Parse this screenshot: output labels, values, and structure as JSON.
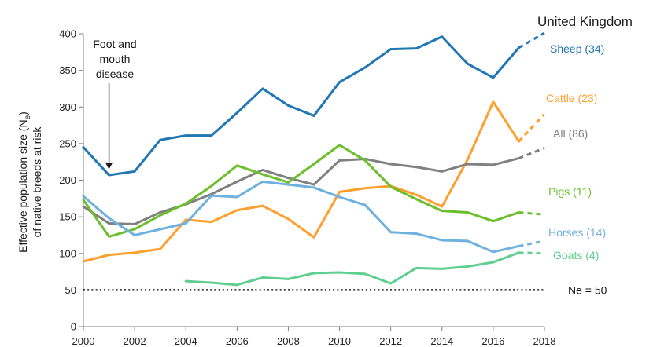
{
  "chart_data": {
    "type": "line",
    "title": "United Kingdom",
    "xlabel": "",
    "ylabel": "Effective population size (Ne) of native breeds at risk",
    "ylabel_parts": {
      "line1_pre": "Effective population size (N",
      "line1_sub": "e",
      "line1_post": ")",
      "line2": "of native breeds at risk"
    },
    "xlim": [
      2000,
      2018
    ],
    "ylim": [
      0,
      400
    ],
    "x_ticks": [
      2000,
      2002,
      2004,
      2006,
      2008,
      2010,
      2012,
      2014,
      2016,
      2018
    ],
    "y_ticks": [
      0,
      50,
      100,
      150,
      200,
      250,
      300,
      350,
      400
    ],
    "grid": false,
    "series": [
      {
        "name": "Sheep (34)",
        "label": "Sheep (34)",
        "color": "#1f77b4",
        "x": [
          2000,
          2001,
          2002,
          2003,
          2004,
          2005,
          2006,
          2007,
          2008,
          2009,
          2010,
          2011,
          2012,
          2013,
          2014,
          2015,
          2016,
          2017
        ],
        "values": [
          245,
          207,
          212,
          255,
          261,
          261,
          292,
          325,
          302,
          288,
          334,
          354,
          379,
          380,
          396,
          359,
          340,
          381
        ],
        "projection": {
          "x": [
            2017,
            2018
          ],
          "values": [
            381,
            401
          ]
        }
      },
      {
        "name": "Cattle (23)",
        "label": "Cattle (23)",
        "color": "#ff9f2e",
        "x": [
          2000,
          2001,
          2002,
          2003,
          2004,
          2005,
          2006,
          2007,
          2008,
          2009,
          2010,
          2011,
          2012,
          2013,
          2014,
          2015,
          2016,
          2017
        ],
        "values": [
          89,
          98,
          101,
          106,
          146,
          143,
          159,
          165,
          147,
          122,
          184,
          189,
          192,
          180,
          164,
          228,
          307,
          253
        ],
        "projection": {
          "x": [
            2017,
            2018
          ],
          "values": [
            253,
            290
          ]
        }
      },
      {
        "name": "All (86)",
        "label": "All (86)",
        "color": "#808080",
        "x": [
          2000,
          2001,
          2002,
          2003,
          2004,
          2005,
          2006,
          2007,
          2008,
          2009,
          2010,
          2011,
          2012,
          2013,
          2014,
          2015,
          2016,
          2017
        ],
        "values": [
          164,
          141,
          140,
          156,
          167,
          181,
          198,
          214,
          203,
          194,
          227,
          229,
          222,
          218,
          212,
          222,
          221,
          230
        ],
        "projection": {
          "x": [
            2017,
            2018
          ],
          "values": [
            230,
            244
          ]
        }
      },
      {
        "name": "Pigs (11)",
        "label": "Pigs (11)",
        "color": "#6abf2a",
        "x": [
          2000,
          2001,
          2002,
          2003,
          2004,
          2005,
          2006,
          2007,
          2008,
          2009,
          2010,
          2011,
          2012,
          2013,
          2014,
          2015,
          2016,
          2017
        ],
        "values": [
          173,
          123,
          133,
          152,
          168,
          192,
          220,
          208,
          197,
          222,
          248,
          227,
          191,
          174,
          158,
          156,
          144,
          156
        ],
        "projection": {
          "x": [
            2017,
            2018
          ],
          "values": [
            156,
            153
          ]
        }
      },
      {
        "name": "Horses (14)",
        "label": "Horses (14)",
        "color": "#6fb1de",
        "x": [
          2000,
          2001,
          2002,
          2003,
          2004,
          2005,
          2006,
          2007,
          2008,
          2009,
          2010,
          2011,
          2012,
          2013,
          2014,
          2015,
          2016,
          2017
        ],
        "values": [
          178,
          148,
          125,
          133,
          141,
          179,
          177,
          198,
          194,
          190,
          177,
          166,
          129,
          127,
          118,
          117,
          102,
          110
        ],
        "projection": {
          "x": [
            2017,
            2018
          ],
          "values": [
            110,
            117
          ]
        }
      },
      {
        "name": "Goats (4)",
        "label": "Goats (4)",
        "color": "#5fcf8f",
        "x": [
          2004,
          2005,
          2006,
          2007,
          2008,
          2009,
          2010,
          2011,
          2012,
          2013,
          2014,
          2015,
          2016,
          2017
        ],
        "values": [
          62,
          60,
          57,
          67,
          65,
          73,
          74,
          72,
          59,
          80,
          79,
          82,
          88,
          101
        ],
        "projection": {
          "x": [
            2017,
            2018
          ],
          "values": [
            101,
            100
          ]
        }
      }
    ],
    "reference_line": {
      "y": 50,
      "label": "Ne = 50",
      "color": "#000000"
    },
    "annotation": {
      "lines": [
        "Foot and",
        "mouth",
        "disease"
      ],
      "arrow_x": 2001,
      "arrow_to_y": 215
    }
  }
}
